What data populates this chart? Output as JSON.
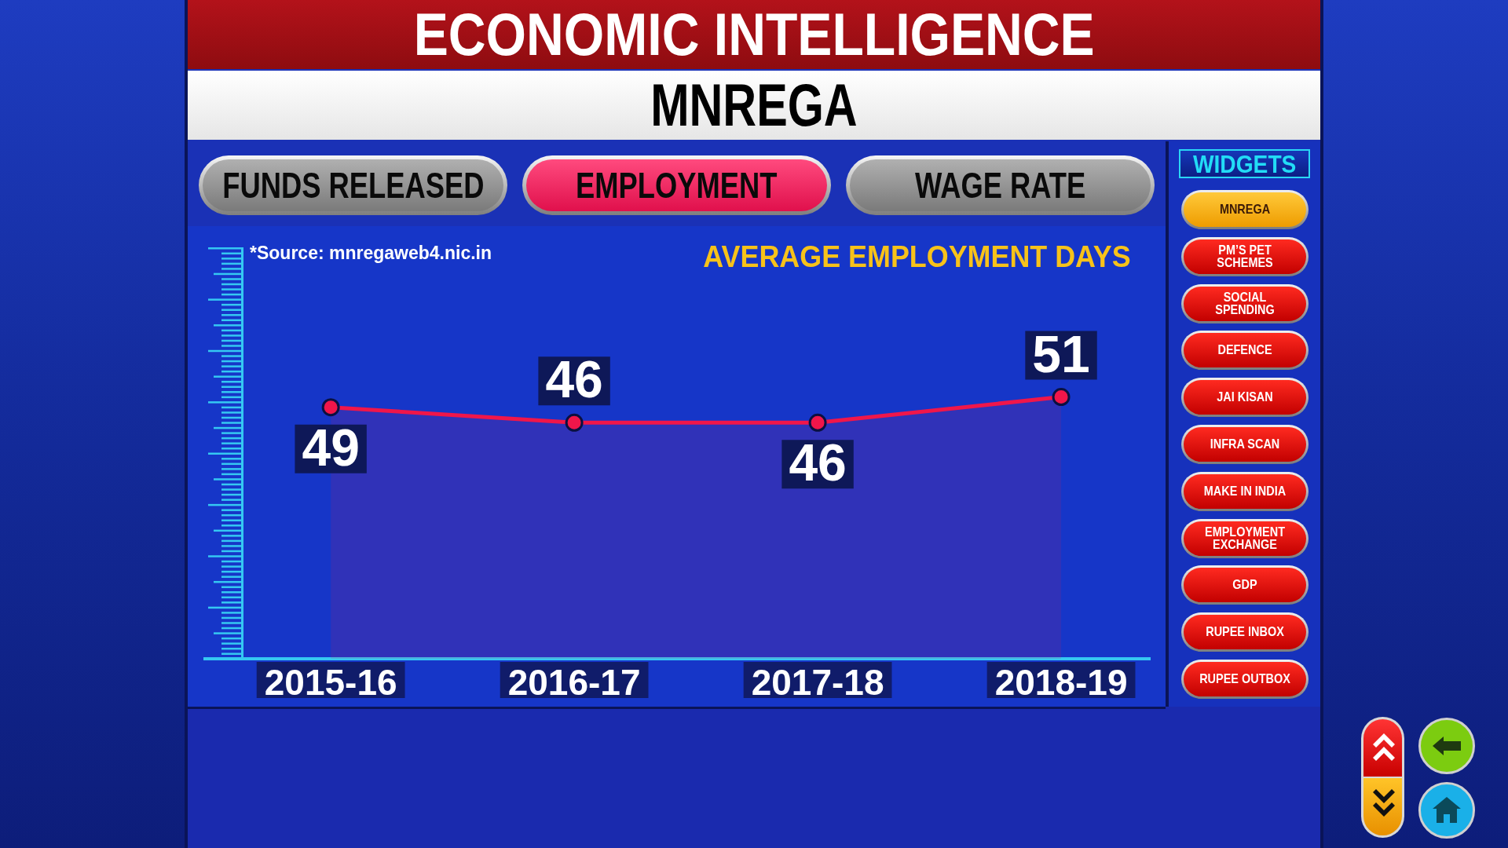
{
  "chart_data": [
    {
      "type": "other",
      "title": "ECONOMIC INTELLIGENCE",
      "subtitle": "MNREGA",
      "annotations": [
        "FUNDS RELEASED",
        "EMPLOYMENT",
        "WAGE RATE"
      ]
    },
    {
      "type": "area",
      "title": "AVERAGE EMPLOYMENT DAYS",
      "annotations": [
        "*Source: mnregaweb4.nic.in"
      ],
      "categories": [
        "2015-16",
        "2016-17",
        "2017-18",
        "2018-19"
      ],
      "values": [
        49,
        46,
        46,
        51
      ],
      "color": "#f0164a",
      "tick_labels": "x",
      "marker": "circle",
      "line_style": "solid",
      "data_labels": true
    },
    {
      "type": "other",
      "title": "WIDGETS",
      "annotations": [
        "MNREGA",
        "PM’S PET SCHEMES",
        "SOCIAL SPENDING",
        "DEFENCE",
        "JAI KISAN",
        "INFRA SCAN",
        "MAKE IN INDIA",
        "EMPLOYMENT EXCHANGE",
        "GDP",
        "RUPEE INBOX",
        "RUPEE OUTBOX"
      ]
    }
  ]
}
